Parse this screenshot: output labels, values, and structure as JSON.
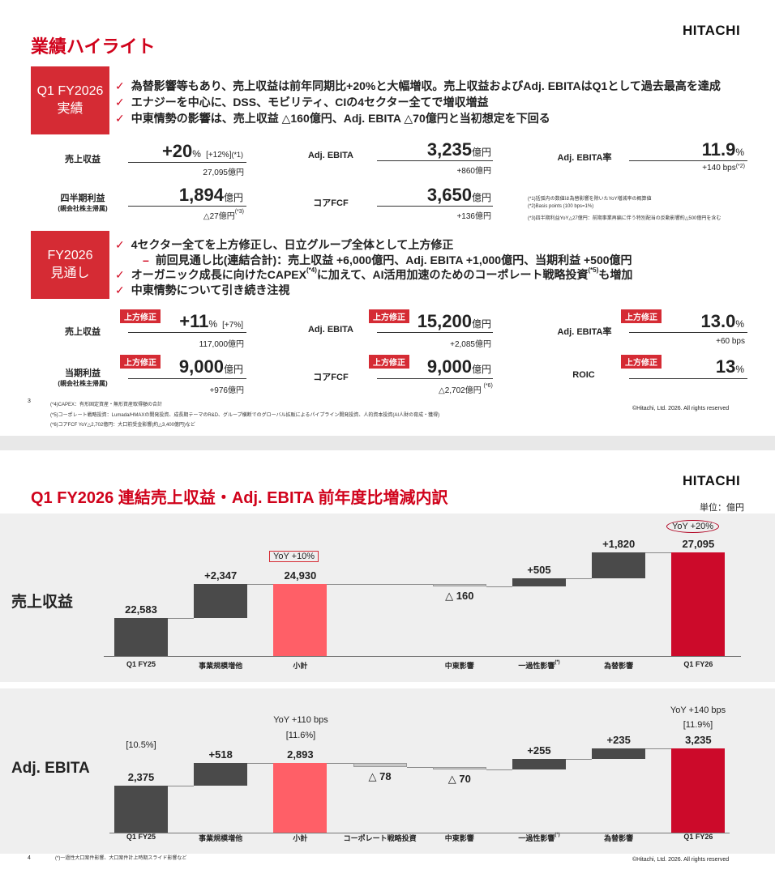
{
  "brand": "HITACHI",
  "slide1": {
    "title": "業績ハイライト",
    "q1_box": [
      "Q1 FY2026",
      "実績"
    ],
    "q1_bullets": [
      "為替影響等もあり、売上収益は前年同期比+20%と大幅増収。売上収益およびAdj. EBITAはQ1として過去最高を達成",
      "エナジーを中心に、DSS、モビリティ、CIの4セクター全てで増収増益",
      "中東情勢の影響は、売上収益 △160億円、Adj. EBITA △70億円と当初想定を下回る"
    ],
    "q1_kpis": {
      "revenue": {
        "label": "売上収益",
        "value": "+20",
        "unit": "%",
        "extra": "[+12%]",
        "note": "(*1)",
        "sub": "27,095億円"
      },
      "ebita": {
        "label": "Adj. EBITA",
        "value": "3,235",
        "unit": "億円",
        "sub": "+860億円"
      },
      "ebita_rate": {
        "label": "Adj. EBITA率",
        "value": "11.9",
        "unit": "%",
        "sub": "+140 bps",
        "sub_note": "(*2)"
      },
      "net_income": {
        "label": "四半期利益",
        "label_sub": "(親会社株主帰属)",
        "value": "1,894",
        "unit": "億円",
        "sub": "△27億円",
        "sub_note": "(*3)"
      },
      "core_fcf": {
        "label": "コアFCF",
        "value": "3,650",
        "unit": "億円",
        "sub": "+136億円"
      }
    },
    "q1_notes": [
      "(*1)括弧内の数値は為替影響を除いたYoY増減率の概算値",
      "(*2)Basis points (100 bps=1%)",
      "(*3)四半期利益YoY△27億円：前期事業再編に伴う特別配当の反動影響約△500億円を含む"
    ],
    "fy_box": [
      "FY2026",
      "見通し"
    ],
    "fy_bullets": [
      "4セクター全てを上方修正し、日立グループ全体として上方修正",
      "前回見通し比(連結合計)：売上収益 +6,000億円、Adj. EBITA +1,000億円、当期利益 +500億円",
      "オーガニック成長に向けたCAPEX",
      "に加えて、AI活用加速のためのコーポレート戦略投資",
      "も増加",
      "中東情勢について引き続き注視"
    ],
    "fy_bullet_notes": {
      "capex": "(*4)",
      "strategic": "(*5)"
    },
    "fy_tag": "上方修正",
    "fy_kpis": {
      "revenue": {
        "label": "売上収益",
        "value": "+11",
        "unit": "%",
        "extra": "[+7%]",
        "sub": "117,000億円"
      },
      "ebita": {
        "label": "Adj. EBITA",
        "value": "15,200",
        "unit": "億円",
        "sub": "+2,085億円"
      },
      "ebita_rate": {
        "label": "Adj. EBITA率",
        "value": "13.0",
        "unit": "%",
        "sub": "+60 bps"
      },
      "net_income": {
        "label": "当期利益",
        "label_sub": "(親会社株主帰属)",
        "value": "9,000",
        "unit": "億円",
        "sub": "+976億円"
      },
      "core_fcf": {
        "label": "コアFCF",
        "value": "9,000",
        "unit": "億円",
        "sub": "△2,702億円",
        "sub_note": "(*6)"
      },
      "roic": {
        "label": "ROIC",
        "value": "13",
        "unit": "%"
      }
    },
    "page": "3",
    "footnotes": [
      "(*4)CAPEX：有形固定資産・無形資産取得額の合計",
      "(*5)コーポレート戦略投資：Lumada/HMAXの開発投資、成長期テーマのR&D、グループ横断でのグローバル拡販によるパイプライン開発投資、人的資本投資(AI人財の育成・獲得)",
      "(*6)コアFCF YoY△2,702億円：大口前受金影響(約△3,400億円)など"
    ],
    "copyright": "©Hitachi, Ltd. 2026. All rights reserved"
  },
  "slide2": {
    "title": "Q1 FY2026 連結売上収益・Adj. EBITA 前年度比増減内訳",
    "unit": "単位：億円",
    "revenue_label": "売上収益",
    "ebita_label": "Adj. EBITA",
    "page": "4",
    "footnote": "(*)一過性大口案件影響、大口案件計上時期スライド影響など",
    "copyright": "©Hitachi, Ltd. 2026. All rights reserved",
    "rev_annot": {
      "yoy_sub": "YoY +10%",
      "yoy_total": "YoY +20%"
    },
    "ebita_annot": {
      "yoy_sub": "YoY +110 bps",
      "rate_sub": "[11.6%]",
      "rate_base": "[10.5%]",
      "yoy_total": "YoY +140 bps",
      "rate_total": "[11.9%]"
    },
    "fx_note": "(*)"
  },
  "chart_data": [
    {
      "type": "bar",
      "title": "売上収益",
      "categories": [
        "Q1 FY25",
        "事業規模増他",
        "小計",
        "中東影響",
        "一過性影響",
        "為替影響",
        "Q1 FY26"
      ],
      "values": [
        22583,
        2347,
        24930,
        -160,
        505,
        1820,
        27095
      ],
      "labels": [
        "22,583",
        "+2,347",
        "24,930",
        "△ 160",
        "+505",
        "+1,820",
        "27,095"
      ],
      "kinds": [
        "total",
        "delta",
        "subtotal",
        "delta",
        "delta",
        "delta",
        "final"
      ]
    },
    {
      "type": "bar",
      "title": "Adj. EBITA",
      "categories": [
        "Q1 FY25",
        "事業規模増他",
        "小計",
        "コーポレート戦略投資",
        "中東影響",
        "一過性影響",
        "為替影響",
        "Q1 FY26"
      ],
      "values": [
        2375,
        518,
        2893,
        -78,
        -70,
        255,
        235,
        3235
      ],
      "labels": [
        "2,375",
        "+518",
        "2,893",
        "△ 78",
        "△ 70",
        "+255",
        "+235",
        "3,235"
      ],
      "kinds": [
        "total",
        "delta",
        "subtotal",
        "delta",
        "delta",
        "delta",
        "delta",
        "final"
      ]
    }
  ]
}
